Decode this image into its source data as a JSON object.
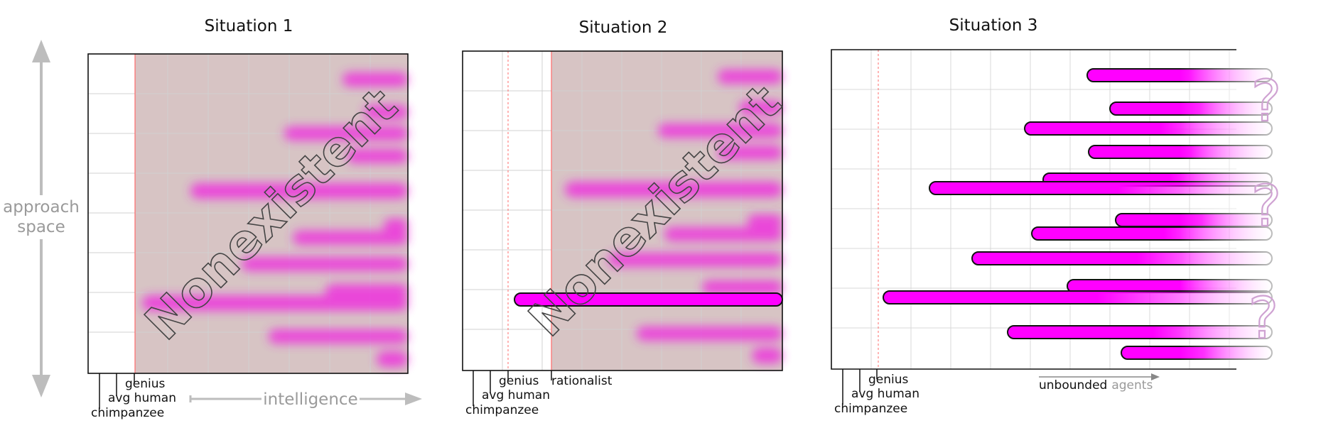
{
  "panels": [
    {
      "title": "Situation 1",
      "markers": [
        "chimpanzee",
        "avg human",
        "genius"
      ],
      "overlay": "Nonexistent"
    },
    {
      "title": "Situation 2",
      "markers": [
        "chimpanzee",
        "avg human",
        "genius",
        "rationalist"
      ],
      "overlay": "Nonexistent"
    },
    {
      "title": "Situation 3",
      "markers": [
        "chimpanzee",
        "avg human",
        "genius"
      ],
      "question_mark": "?",
      "arrow_label_dark": "unbounded",
      "arrow_label_light": "agents"
    }
  ],
  "axes": {
    "y_label_line1": "approach",
    "y_label_line2": "space",
    "x_label": "intelligence"
  },
  "colors": {
    "bar": "#ff00ff",
    "nonexistent_shade": "#c9b0b0",
    "question": "#cfa2d2",
    "axis_arrow": "#bdbdbd"
  }
}
